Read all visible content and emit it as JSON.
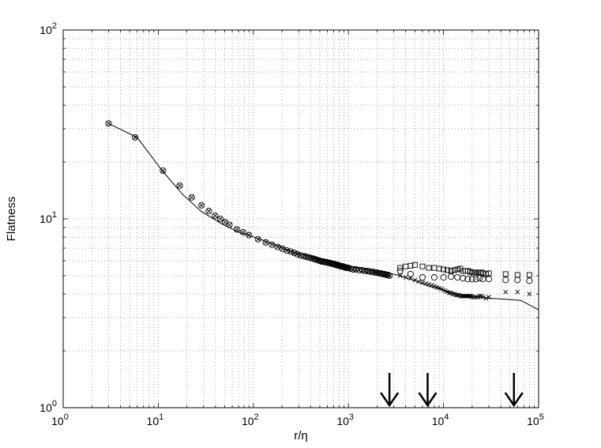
{
  "chart_data": {
    "type": "scatter",
    "title": "",
    "xlabel": "r/η",
    "ylabel": "Flatness",
    "xscale": "log",
    "yscale": "log",
    "xlim": [
      1,
      100000
    ],
    "ylim": [
      1,
      100
    ],
    "grid": true,
    "grid_style": "dotted",
    "x_ticks": [
      {
        "value": 1,
        "base": "10",
        "exp": "0"
      },
      {
        "value": 10,
        "base": "10",
        "exp": "1"
      },
      {
        "value": 100,
        "base": "10",
        "exp": "2"
      },
      {
        "value": 1000,
        "base": "10",
        "exp": "3"
      },
      {
        "value": 10000,
        "base": "10",
        "exp": "4"
      },
      {
        "value": 100000,
        "base": "10",
        "exp": "5"
      }
    ],
    "y_ticks": [
      {
        "value": 1,
        "base": "10",
        "exp": "0"
      },
      {
        "value": 10,
        "base": "10",
        "exp": "1"
      },
      {
        "value": 100,
        "base": "10",
        "exp": "2"
      }
    ],
    "series": [
      {
        "marker": "line",
        "x": [
          3,
          6,
          11,
          18,
          28,
          45,
          70,
          110,
          170,
          260,
          400,
          600,
          900,
          1300,
          1800,
          2500,
          3500,
          5000,
          7000,
          10000,
          14000,
          20000,
          30000,
          45000,
          65000,
          100000
        ],
        "y": [
          32,
          27,
          18,
          13.5,
          11,
          9.5,
          8.5,
          7.9,
          7.3,
          6.7,
          6.3,
          6.0,
          5.7,
          5.5,
          5.3,
          5.2,
          5.0,
          4.7,
          4.4,
          4.2,
          4.0,
          3.9,
          3.8,
          3.75,
          3.7,
          3.3
        ]
      },
      {
        "marker": "circle",
        "x": [
          3,
          5.7,
          11.2,
          16.8,
          22.5,
          28.5,
          34,
          39.5,
          45,
          50.5,
          56,
          67,
          78,
          90,
          112,
          135,
          157,
          180,
          202,
          225,
          248,
          270,
          290,
          315,
          340,
          360,
          385,
          405,
          430,
          450,
          475,
          500,
          520,
          545,
          565,
          590,
          610,
          635,
          655,
          680,
          700,
          725,
          745,
          770,
          790,
          815,
          835,
          860,
          880,
          905,
          925,
          950,
          970,
          995,
          1050,
          1120,
          1200,
          1300,
          1400,
          1500,
          1600,
          1700,
          1800,
          1900,
          2000,
          2100,
          2200,
          2300,
          2400,
          2500,
          2600,
          2700,
          3500,
          4500,
          6000,
          8000,
          10000,
          12000,
          14000,
          16000,
          18000,
          20000,
          22000,
          24000,
          26000,
          30000,
          45000,
          60000,
          80000
        ],
        "y": [
          32,
          27,
          18,
          15,
          13,
          11.8,
          11,
          10.4,
          10,
          9.6,
          9.3,
          8.8,
          8.5,
          8.2,
          7.8,
          7.5,
          7.3,
          7.1,
          6.95,
          6.8,
          6.7,
          6.6,
          6.5,
          6.4,
          6.35,
          6.3,
          6.25,
          6.2,
          6.15,
          6.1,
          6.05,
          6.0,
          5.95,
          5.95,
          5.9,
          5.9,
          5.85,
          5.85,
          5.8,
          5.8,
          5.75,
          5.75,
          5.7,
          5.7,
          5.65,
          5.65,
          5.6,
          5.6,
          5.6,
          5.55,
          5.55,
          5.5,
          5.5,
          5.5,
          5.45,
          5.4,
          5.4,
          5.35,
          5.35,
          5.3,
          5.3,
          5.25,
          5.25,
          5.2,
          5.2,
          5.15,
          5.15,
          5.1,
          5.1,
          5.05,
          5.05,
          5.0,
          5.3,
          5.1,
          4.9,
          4.9,
          4.9,
          4.95,
          4.9,
          4.85,
          4.8,
          4.8,
          4.8,
          4.85,
          4.8,
          4.8,
          4.75,
          4.75,
          4.7
        ]
      },
      {
        "marker": "square",
        "x": [
          3500,
          4000,
          4500,
          5000,
          6000,
          7000,
          8000,
          9000,
          10000,
          11000,
          12000,
          13000,
          14000,
          15000,
          16000,
          17000,
          18000,
          19000,
          20000,
          21000,
          22000,
          23000,
          24000,
          25000,
          26000,
          28000,
          30000,
          45000,
          60000,
          80000
        ],
        "y": [
          5.5,
          5.6,
          5.65,
          5.7,
          5.6,
          5.5,
          5.5,
          5.45,
          5.4,
          5.35,
          5.3,
          5.35,
          5.4,
          5.45,
          5.3,
          5.3,
          5.3,
          5.25,
          5.2,
          5.2,
          5.2,
          5.2,
          5.2,
          5.2,
          5.15,
          5.1,
          5.15,
          5.1,
          5.05,
          5.05
        ]
      },
      {
        "marker": "cross",
        "x": [
          3,
          5.7,
          11.2,
          16.8,
          22.5,
          28.5,
          34,
          39.5,
          45,
          50.5,
          56,
          67,
          78,
          90,
          112,
          135,
          157,
          180,
          202,
          225,
          248,
          270,
          290,
          315,
          340,
          360,
          385,
          405,
          430,
          450,
          475,
          500,
          520,
          545,
          565,
          590,
          610,
          635,
          655,
          680,
          700,
          725,
          745,
          770,
          790,
          815,
          835,
          860,
          880,
          905,
          925,
          950,
          970,
          995,
          1050,
          1120,
          1200,
          1300,
          1400,
          1500,
          1600,
          1700,
          1800,
          1900,
          2000,
          2100,
          2200,
          2300,
          2400,
          2500,
          2600,
          2700,
          3500,
          4000,
          4500,
          5000,
          5500,
          6000,
          6500,
          7000,
          7500,
          8000,
          8500,
          9000,
          9500,
          10000,
          10500,
          11000,
          11500,
          12000,
          12500,
          13000,
          13500,
          14000,
          14500,
          15000,
          15500,
          16000,
          16500,
          17000,
          17500,
          18000,
          18500,
          19000,
          19500,
          20000,
          21000,
          22000,
          23000,
          24000,
          25000,
          26000,
          28000,
          30000,
          45000,
          60000,
          80000
        ],
        "y": [
          32,
          27,
          18,
          15,
          13,
          11.8,
          11,
          10.4,
          10,
          9.6,
          9.3,
          8.8,
          8.5,
          8.2,
          7.8,
          7.5,
          7.3,
          7.1,
          6.95,
          6.8,
          6.7,
          6.6,
          6.5,
          6.4,
          6.35,
          6.3,
          6.25,
          6.2,
          6.15,
          6.1,
          6.05,
          6.0,
          5.95,
          5.95,
          5.9,
          5.9,
          5.85,
          5.85,
          5.8,
          5.8,
          5.75,
          5.75,
          5.7,
          5.7,
          5.65,
          5.65,
          5.6,
          5.6,
          5.6,
          5.55,
          5.55,
          5.5,
          5.5,
          5.5,
          5.45,
          5.4,
          5.4,
          5.35,
          5.35,
          5.3,
          5.3,
          5.25,
          5.25,
          5.2,
          5.2,
          5.15,
          5.15,
          5.1,
          5.1,
          5.05,
          5.05,
          5.0,
          5.0,
          4.9,
          4.85,
          4.75,
          4.65,
          4.6,
          4.55,
          4.5,
          4.45,
          4.4,
          4.35,
          4.3,
          4.25,
          4.2,
          4.15,
          4.1,
          4.05,
          4.05,
          4.0,
          4.0,
          3.95,
          3.95,
          3.95,
          3.9,
          3.9,
          3.9,
          3.9,
          3.9,
          3.9,
          3.9,
          3.9,
          3.9,
          3.9,
          3.85,
          3.85,
          3.85,
          3.85,
          3.9,
          3.9,
          3.85,
          3.8,
          3.85,
          4.1,
          4.1,
          4.0
        ]
      }
    ],
    "annotations": [
      {
        "type": "arrow-down",
        "x": 2700
      },
      {
        "type": "arrow-down",
        "x": 6800
      },
      {
        "type": "arrow-down",
        "x": 55000
      }
    ],
    "legend": "none"
  }
}
